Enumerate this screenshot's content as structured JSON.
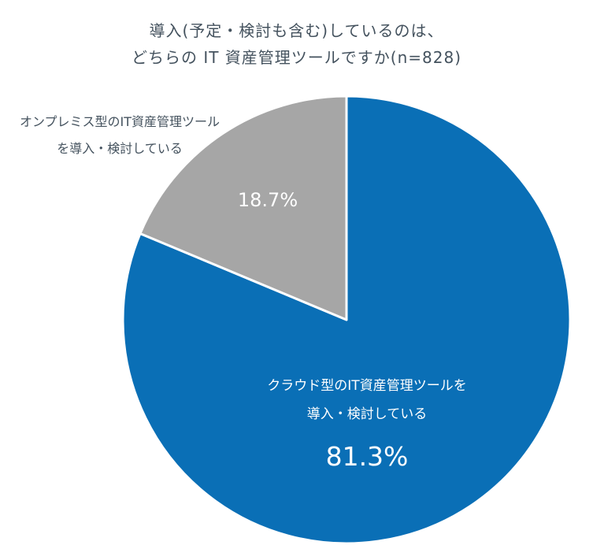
{
  "title": {
    "line1": "導入(予定・検討も含む)しているのは、",
    "line2": "どちらの IT 資産管理ツールですか(n=828)"
  },
  "chart_data": {
    "type": "pie",
    "title": "導入(予定・検討も含む)しているのは、どちらの IT 資産管理ツールですか(n=828)",
    "n": 828,
    "start_angle_deg": 0,
    "direction": "clockwise",
    "slices": [
      {
        "id": "cloud",
        "label": "クラウド型のIT資産管理ツールを導入・検討している",
        "value": 81.3,
        "pct_label": "81.3%",
        "color": "#0a6fb6",
        "label_position": "inside"
      },
      {
        "id": "onprem",
        "label": "オンプレミス型のIT資産管理ツールを導入・検討している",
        "value": 18.7,
        "pct_label": "18.7%",
        "color": "#a6a6a6",
        "label_position": "outside"
      }
    ],
    "legend": "none",
    "grid": false
  },
  "labels": {
    "onprem_line1": "オンプレミス型のIT資産管理ツール",
    "onprem_line2": "を導入・検討している",
    "onprem_pct": "18.7%",
    "cloud_line1": "クラウド型のIT資産管理ツールを",
    "cloud_line2": "導入・検討している",
    "cloud_pct": "81.3%"
  },
  "colors": {
    "cloud_blue": "#0a6fb6",
    "onprem_gray": "#a6a6a6",
    "title_text": "#44525e",
    "slice_text": "#ffffff"
  }
}
